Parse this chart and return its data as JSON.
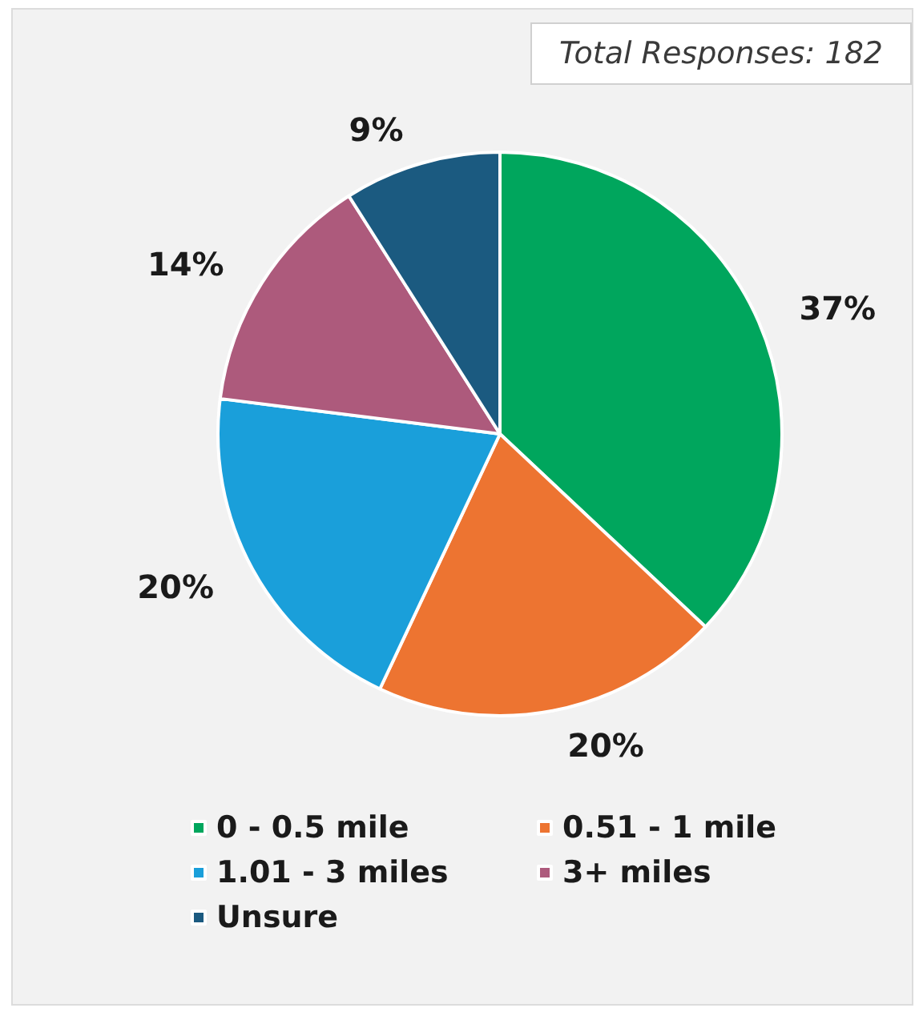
{
  "chart_data": {
    "type": "pie",
    "categories": [
      "0 - 0.5 mile",
      "0.51 - 1 mile",
      "1.01 - 3 miles",
      "3+ miles",
      "Unsure"
    ],
    "values": [
      37,
      20,
      20,
      14,
      9
    ],
    "colors": [
      "#00a65d",
      "#ed7431",
      "#1a9fda",
      "#ad5a7c",
      "#1b5a80"
    ],
    "value_labels": [
      "37%",
      "20%",
      "20%",
      "14%",
      "9%"
    ],
    "annotations": [
      "Total Responses: 182"
    ],
    "legend": "bottom"
  }
}
